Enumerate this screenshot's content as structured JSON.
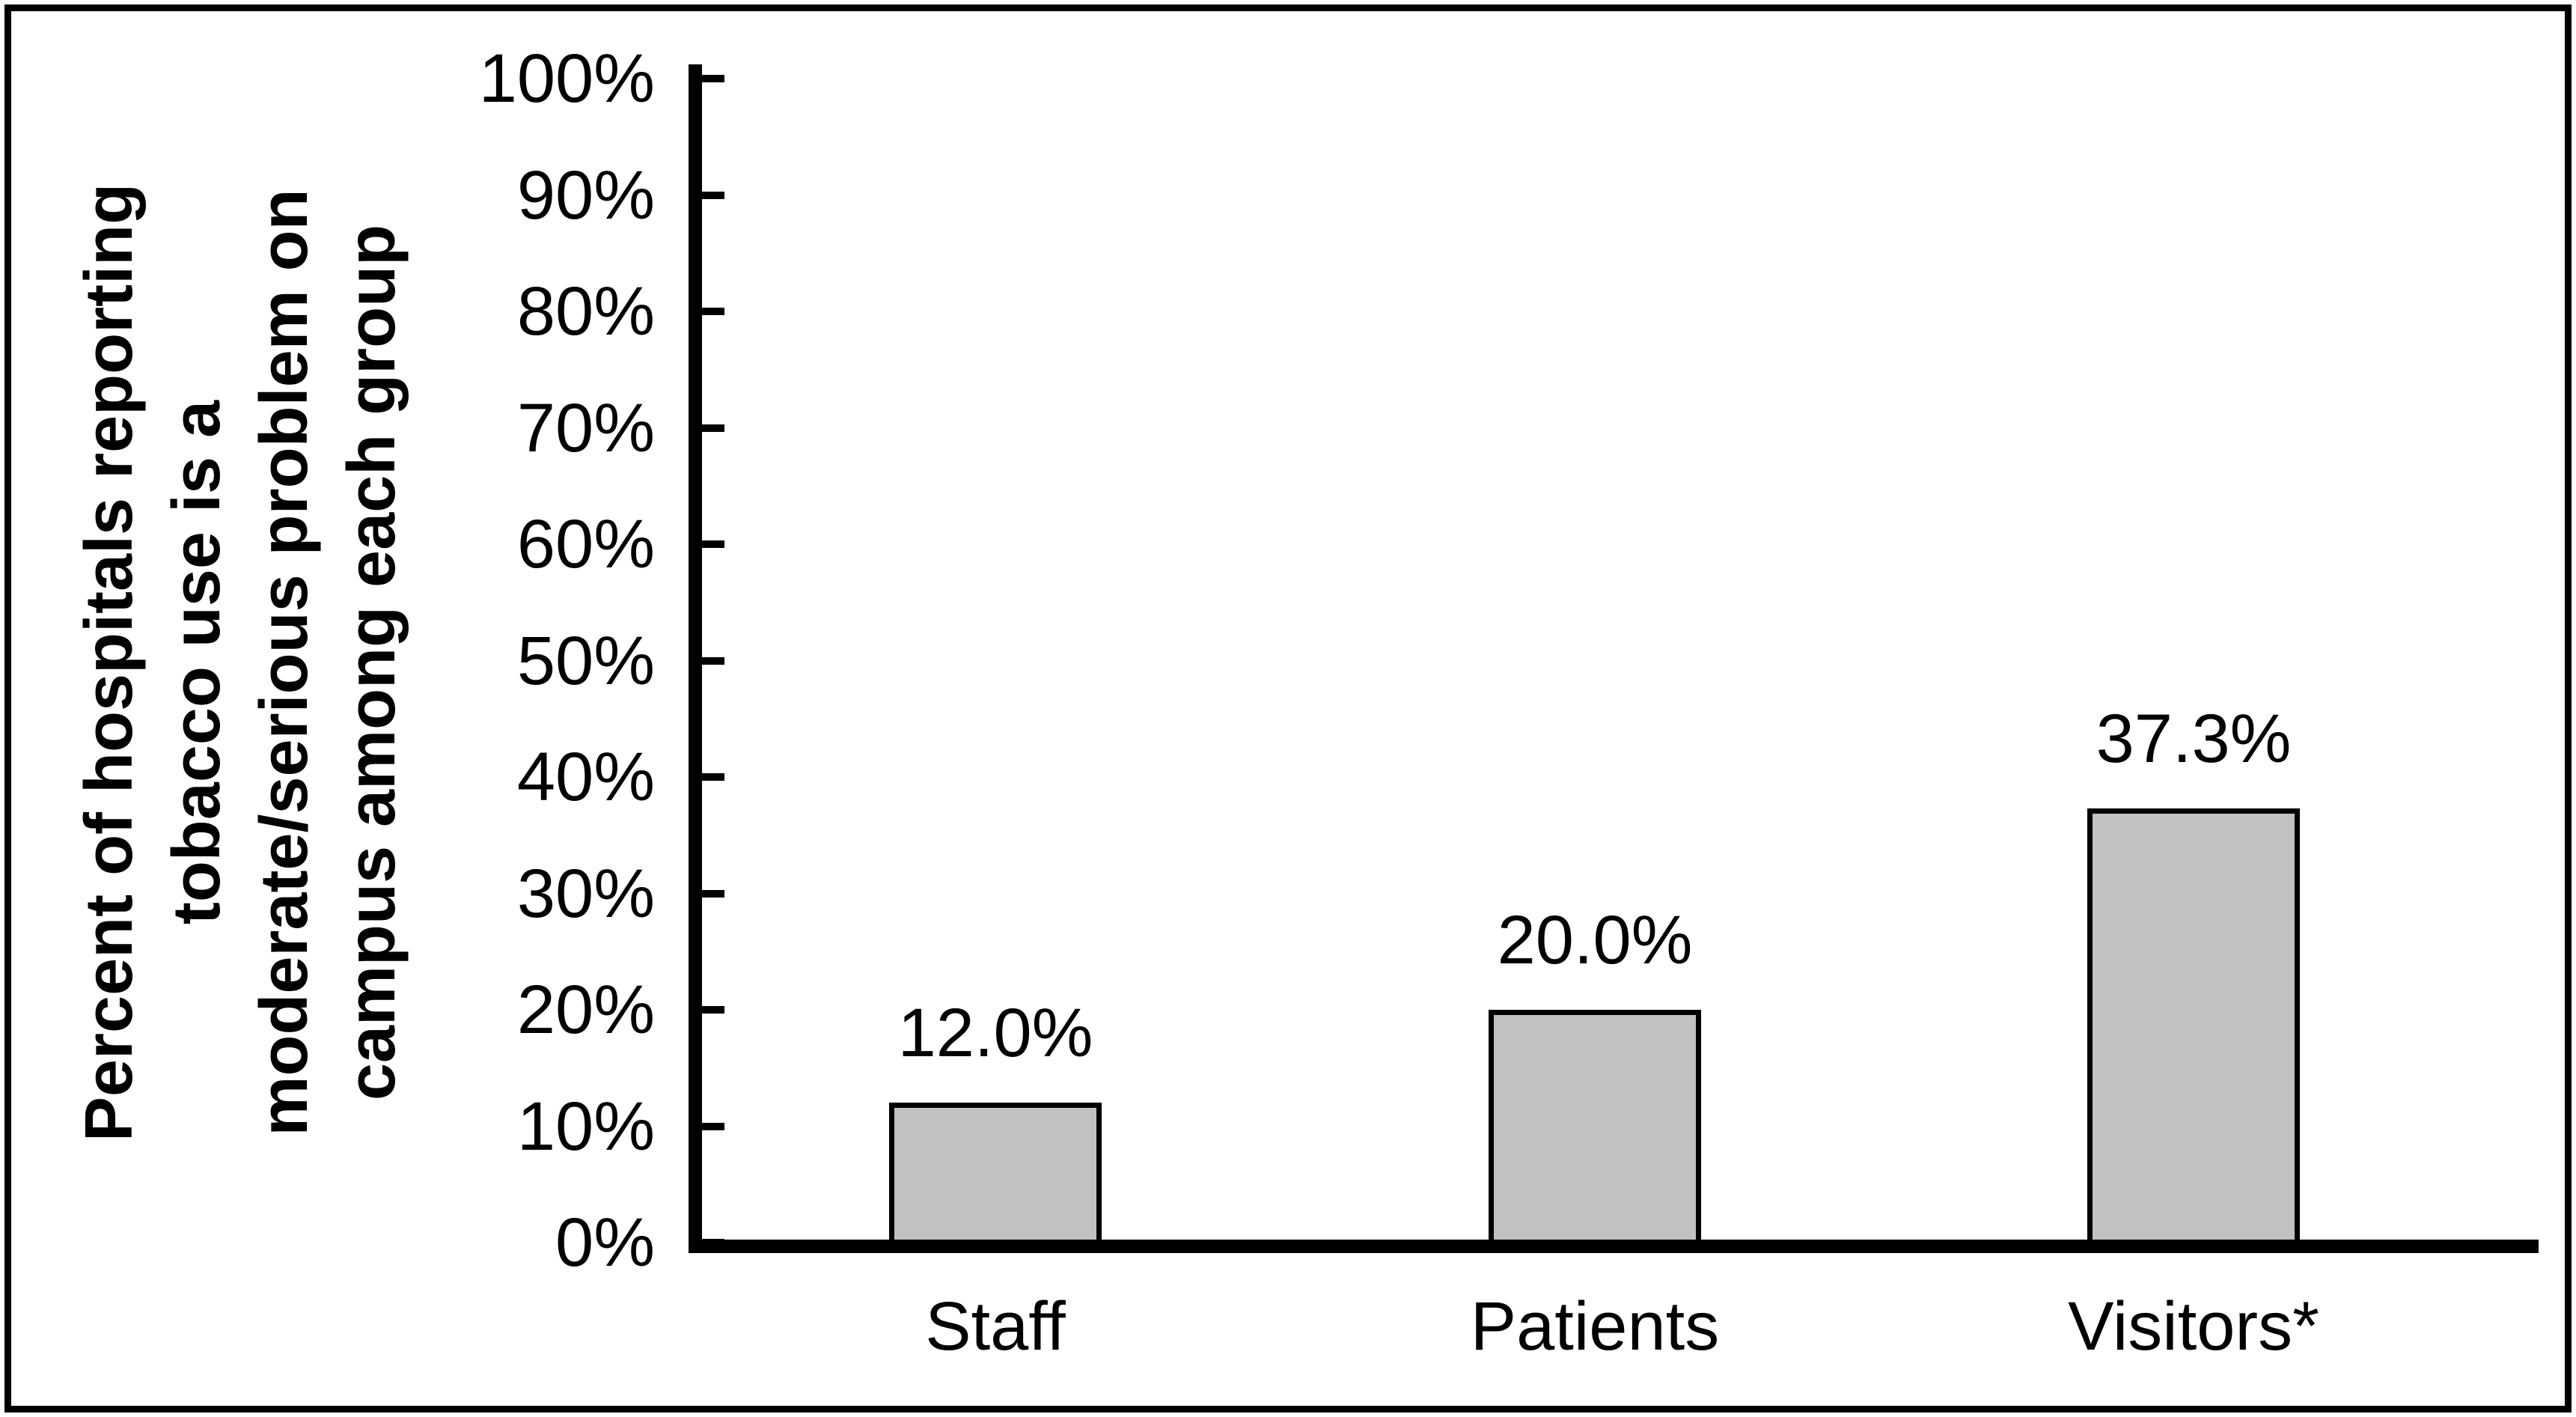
{
  "chart_data": {
    "type": "bar",
    "title": "",
    "xlabel": "",
    "ylabel": "Percent of hospitals reporting\ntobacco use is a\nmoderate/serious problem on\ncampus among each group",
    "categories": [
      "Staff",
      "Patients",
      "Visitors*"
    ],
    "values": [
      12.0,
      20.0,
      37.3
    ],
    "value_labels": [
      "12.0%",
      "20.0%",
      "37.3%"
    ],
    "yticks": [
      "100%",
      "90%",
      "80%",
      "70%",
      "60%",
      "50%",
      "40%",
      "30%",
      "20%",
      "10%",
      "0%"
    ],
    "ylim": [
      0,
      100
    ],
    "ytick_step": 10,
    "grid": false,
    "legend_position": "none",
    "bar_fill_color": "#C1C1C1",
    "bar_border_color": "#000000",
    "axis_color": "#000000",
    "background_color": "#FFFFFF"
  }
}
